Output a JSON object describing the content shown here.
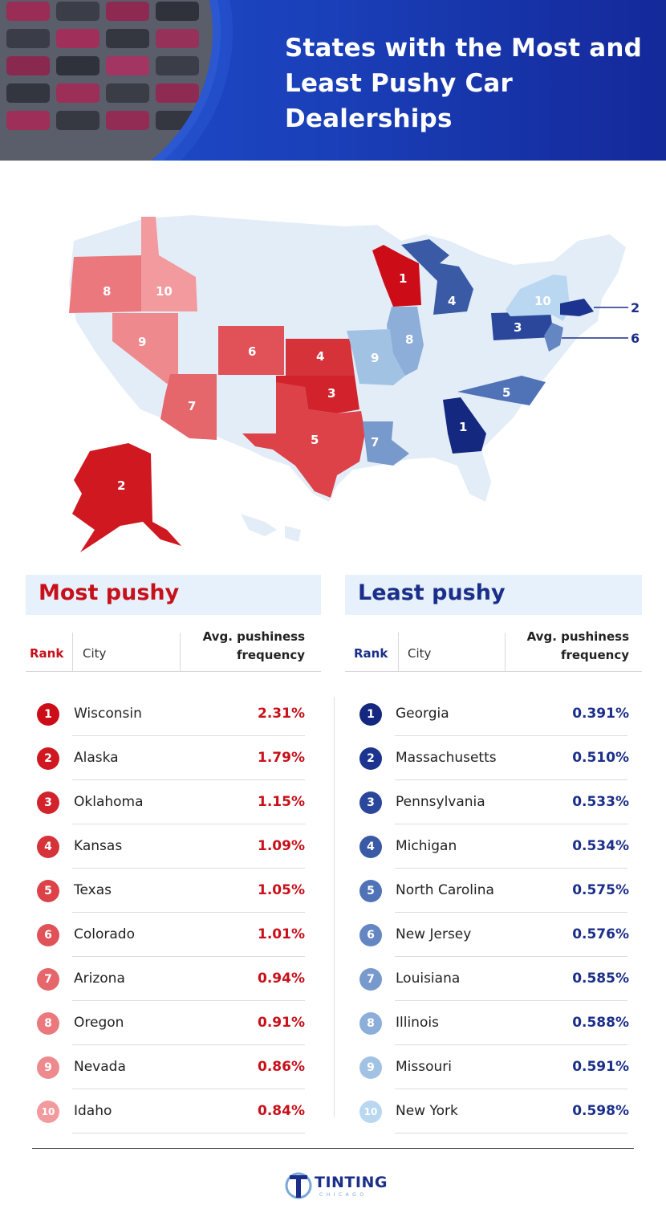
{
  "header": {
    "title": "States with the Most and Least Pushy Car Dealerships"
  },
  "colors": {
    "header_blue": "#1a3fb8",
    "red_dark": "#c8101a",
    "blue_dark": "#1b2f8a",
    "panel_bg": "#e7f1fb",
    "map_base": "#e3edf8"
  },
  "map": {
    "most_pushy_states": [
      {
        "rank": "1",
        "state": "Wisconsin",
        "color": "#cc0d17"
      },
      {
        "rank": "2",
        "state": "Alaska",
        "color": "#cf1820"
      },
      {
        "rank": "3",
        "state": "Oklahoma",
        "color": "#d2232c"
      },
      {
        "rank": "4",
        "state": "Kansas",
        "color": "#d6323a"
      },
      {
        "rank": "5",
        "state": "Texas",
        "color": "#dc4248"
      },
      {
        "rank": "6",
        "state": "Colorado",
        "color": "#e05258"
      },
      {
        "rank": "7",
        "state": "Arizona",
        "color": "#e5666b"
      },
      {
        "rank": "8",
        "state": "Oregon",
        "color": "#ea787c"
      },
      {
        "rank": "9",
        "state": "Nevada",
        "color": "#ee898d"
      },
      {
        "rank": "10",
        "state": "Idaho",
        "color": "#f29a9d"
      }
    ],
    "least_pushy_states": [
      {
        "rank": "1",
        "state": "Georgia",
        "color": "#15287f"
      },
      {
        "rank": "2",
        "state": "Massachusetts",
        "color": "#1c338f"
      },
      {
        "rank": "3",
        "state": "Pennsylvania",
        "color": "#2a479b"
      },
      {
        "rank": "4",
        "state": "Michigan",
        "color": "#3a5aa6"
      },
      {
        "rank": "5",
        "state": "North Carolina",
        "color": "#5072b7"
      },
      {
        "rank": "6",
        "state": "New Jersey",
        "color": "#6486c2"
      },
      {
        "rank": "7",
        "state": "Louisiana",
        "color": "#7899cc"
      },
      {
        "rank": "8",
        "state": "Illinois",
        "color": "#8daed8"
      },
      {
        "rank": "9",
        "state": "Missouri",
        "color": "#a2c2e3"
      },
      {
        "rank": "10",
        "state": "New York",
        "color": "#b9d7f0"
      }
    ]
  },
  "most_pushy": {
    "heading": "Most pushy",
    "col_rank": "Rank",
    "col_city": "City",
    "col_freq_line1": "Avg. pushiness",
    "col_freq_line2": "frequency",
    "rows": [
      {
        "rank": "1",
        "name": "Wisconsin",
        "value": "2.31%",
        "color": "#cc0d17"
      },
      {
        "rank": "2",
        "name": "Alaska",
        "value": "1.79%",
        "color": "#cf1820"
      },
      {
        "rank": "3",
        "name": "Oklahoma",
        "value": "1.15%",
        "color": "#d2232c"
      },
      {
        "rank": "4",
        "name": "Kansas",
        "value": "1.09%",
        "color": "#d6323a"
      },
      {
        "rank": "5",
        "name": "Texas",
        "value": "1.05%",
        "color": "#dc4248"
      },
      {
        "rank": "6",
        "name": "Colorado",
        "value": "1.01%",
        "color": "#e05258"
      },
      {
        "rank": "7",
        "name": "Arizona",
        "value": "0.94%",
        "color": "#e5666b"
      },
      {
        "rank": "8",
        "name": "Oregon",
        "value": "0.91%",
        "color": "#ea787c"
      },
      {
        "rank": "9",
        "name": "Nevada",
        "value": "0.86%",
        "color": "#ee898d"
      },
      {
        "rank": "10",
        "name": "Idaho",
        "value": "0.84%",
        "color": "#f29a9d"
      }
    ]
  },
  "least_pushy": {
    "heading": "Least pushy",
    "col_rank": "Rank",
    "col_city": "City",
    "col_freq_line1": "Avg. pushiness",
    "col_freq_line2": "frequency",
    "rows": [
      {
        "rank": "1",
        "name": "Georgia",
        "value": "0.391%",
        "color": "#15287f"
      },
      {
        "rank": "2",
        "name": "Massachusetts",
        "value": "0.510%",
        "color": "#1c338f"
      },
      {
        "rank": "3",
        "name": "Pennsylvania",
        "value": "0.533%",
        "color": "#2a479b"
      },
      {
        "rank": "4",
        "name": "Michigan",
        "value": "0.534%",
        "color": "#3a5aa6"
      },
      {
        "rank": "5",
        "name": "North Carolina",
        "value": "0.575%",
        "color": "#5072b7"
      },
      {
        "rank": "6",
        "name": "New Jersey",
        "value": "0.576%",
        "color": "#6486c2"
      },
      {
        "rank": "7",
        "name": "Louisiana",
        "value": "0.585%",
        "color": "#7899cc"
      },
      {
        "rank": "8",
        "name": "Illinois",
        "value": "0.588%",
        "color": "#8daed8"
      },
      {
        "rank": "9",
        "name": "Missouri",
        "value": "0.591%",
        "color": "#a2c2e3"
      },
      {
        "rank": "10",
        "name": "New York",
        "value": "0.598%",
        "color": "#b9d7f0"
      }
    ]
  },
  "footer": {
    "logo_main": "TINTING",
    "logo_sub": "CHICAGO"
  }
}
